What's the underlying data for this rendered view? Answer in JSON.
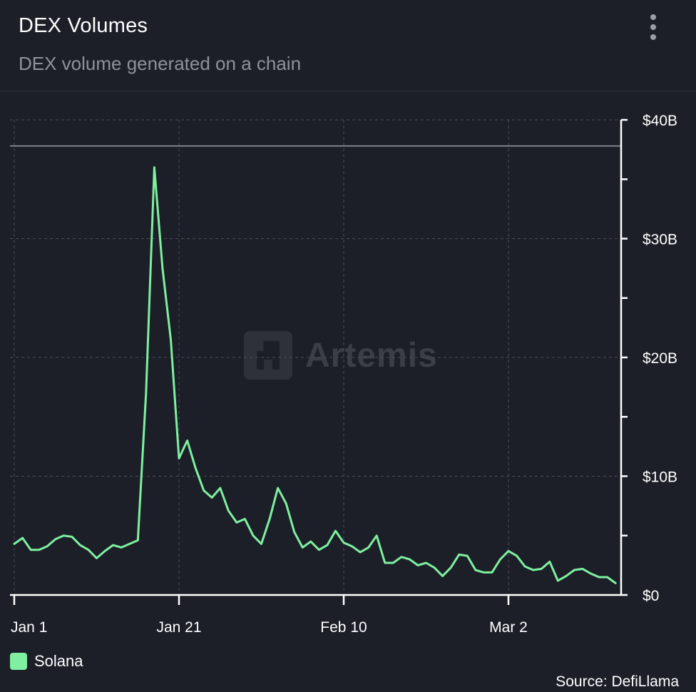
{
  "header": {
    "title": "DEX Volumes",
    "subtitle": "DEX volume generated on a chain"
  },
  "menu": {
    "icon": "more-vertical-icon"
  },
  "watermark": {
    "text": "Artemis",
    "icon": "artemis-logo-icon"
  },
  "legend": {
    "items": [
      {
        "label": "Solana",
        "color": "#7ef0a0"
      }
    ]
  },
  "source": "Source: DefiLlama",
  "colors": {
    "background": "#1c1f28",
    "line": "#7ef0a0",
    "grid": "#4a4e59",
    "axis": "#ffffff",
    "reference_line": "#9a9ea6"
  },
  "chart_data": {
    "type": "line",
    "title": "DEX Volumes",
    "subtitle": "DEX volume generated on a chain",
    "xlabel": "",
    "ylabel": "",
    "x_start": "Jan 1",
    "x_tick_labels": [
      "Jan 1",
      "Jan 21",
      "Feb 10",
      "Mar 2"
    ],
    "x_tick_days": [
      0,
      20,
      40,
      60
    ],
    "y_tick_labels": [
      "$0",
      "$10B",
      "$20B",
      "$30B",
      "$40B"
    ],
    "y_tick_values": [
      0,
      10,
      20,
      30,
      40
    ],
    "y_unit": "B USD",
    "ylim": [
      0,
      40
    ],
    "xlim": [
      0,
      73
    ],
    "grid": true,
    "legend_position": "bottom-left",
    "reference_line": 37.8,
    "series": [
      {
        "name": "Solana",
        "color": "#7ef0a0",
        "values": [
          4.3,
          4.8,
          3.8,
          3.8,
          4.1,
          4.7,
          5.0,
          4.9,
          4.2,
          3.8,
          3.1,
          3.7,
          4.2,
          4.0,
          4.3,
          4.6,
          17.0,
          36.0,
          27.5,
          21.5,
          11.5,
          13.0,
          10.7,
          8.8,
          8.2,
          9.0,
          7.1,
          6.1,
          6.4,
          5.0,
          4.3,
          6.4,
          9.0,
          7.7,
          5.3,
          4.0,
          4.5,
          3.8,
          4.2,
          5.4,
          4.4,
          4.1,
          3.6,
          4.0,
          5.0,
          2.7,
          2.7,
          3.2,
          3.0,
          2.5,
          2.7,
          2.3,
          1.6,
          2.3,
          3.4,
          3.3,
          2.1,
          1.9,
          1.9,
          3.0,
          3.7,
          3.3,
          2.4,
          2.1,
          2.2,
          2.8,
          1.2,
          1.6,
          2.1,
          2.2,
          1.8,
          1.5,
          1.5,
          1.0
        ]
      }
    ]
  }
}
